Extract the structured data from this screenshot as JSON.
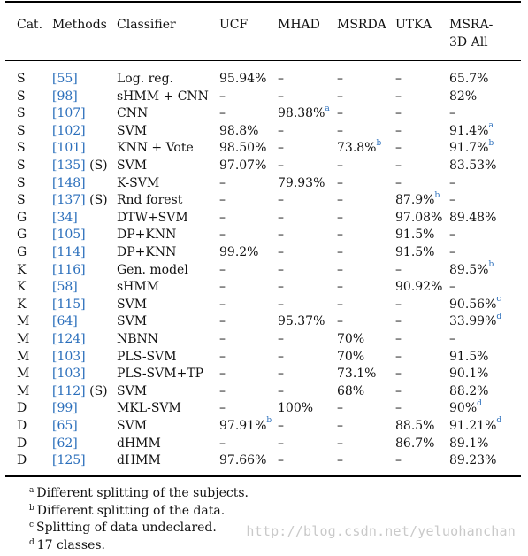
{
  "headers": {
    "cat": "Cat.",
    "methods": "Methods",
    "classifier": "Classifier",
    "ucf": "UCF",
    "mhad": "MHAD",
    "msrda": "MSRDA",
    "utka": "UTKA",
    "msra_line1": "MSRA-",
    "msra_line2": "3D All"
  },
  "rows": [
    {
      "cat": "S",
      "ref": "[55]",
      "tag": "",
      "cls": "Log. reg.",
      "ucf": "95.94%",
      "ucf_n": "",
      "mhad": "–",
      "mhad_n": "",
      "msrda": "–",
      "msrda_n": "",
      "utka": "–",
      "utka_n": "",
      "msra": "65.7%",
      "msra_n": ""
    },
    {
      "cat": "S",
      "ref": "[98]",
      "tag": "",
      "cls": "sHMM + CNN",
      "ucf": "–",
      "ucf_n": "",
      "mhad": "–",
      "mhad_n": "",
      "msrda": "–",
      "msrda_n": "",
      "utka": "–",
      "utka_n": "",
      "msra": "82%",
      "msra_n": ""
    },
    {
      "cat": "S",
      "ref": "[107]",
      "tag": "",
      "cls": "CNN",
      "ucf": "–",
      "ucf_n": "",
      "mhad": "98.38%",
      "mhad_n": "a",
      "msrda": "–",
      "msrda_n": "",
      "utka": "–",
      "utka_n": "",
      "msra": "–",
      "msra_n": ""
    },
    {
      "cat": "S",
      "ref": "[102]",
      "tag": "",
      "cls": "SVM",
      "ucf": "98.8%",
      "ucf_n": "",
      "mhad": "–",
      "mhad_n": "",
      "msrda": "–",
      "msrda_n": "",
      "utka": "–",
      "utka_n": "",
      "msra": "91.4%",
      "msra_n": "a"
    },
    {
      "cat": "S",
      "ref": "[101]",
      "tag": "",
      "cls": "KNN + Vote",
      "ucf": "98.50%",
      "ucf_n": "",
      "mhad": "–",
      "mhad_n": "",
      "msrda": "73.8%",
      "msrda_n": "b",
      "utka": "–",
      "utka_n": "",
      "msra": "91.7%",
      "msra_n": "b"
    },
    {
      "cat": "S",
      "ref": "[135]",
      "tag": " (S)",
      "cls": "SVM",
      "ucf": "97.07%",
      "ucf_n": "",
      "mhad": "–",
      "mhad_n": "",
      "msrda": "–",
      "msrda_n": "",
      "utka": "–",
      "utka_n": "",
      "msra": "83.53%",
      "msra_n": ""
    },
    {
      "cat": "S",
      "ref": "[148]",
      "tag": "",
      "cls": "K-SVM",
      "ucf": "–",
      "ucf_n": "",
      "mhad": "79.93%",
      "mhad_n": "",
      "msrda": "–",
      "msrda_n": "",
      "utka": "–",
      "utka_n": "",
      "msra": "–",
      "msra_n": ""
    },
    {
      "cat": "S",
      "ref": "[137]",
      "tag": " (S)",
      "cls": "Rnd forest",
      "ucf": "–",
      "ucf_n": "",
      "mhad": "–",
      "mhad_n": "",
      "msrda": "–",
      "msrda_n": "",
      "utka": "87.9%",
      "utka_n": "b",
      "msra": "–",
      "msra_n": ""
    },
    {
      "cat": "G",
      "ref": "[34]",
      "tag": "",
      "cls": "DTW+SVM",
      "ucf": "–",
      "ucf_n": "",
      "mhad": "–",
      "mhad_n": "",
      "msrda": "–",
      "msrda_n": "",
      "utka": "97.08%",
      "utka_n": "",
      "msra": "89.48%",
      "msra_n": ""
    },
    {
      "cat": "G",
      "ref": "[105]",
      "tag": "",
      "cls": "DP+KNN",
      "ucf": "–",
      "ucf_n": "",
      "mhad": "–",
      "mhad_n": "",
      "msrda": "–",
      "msrda_n": "",
      "utka": "91.5%",
      "utka_n": "",
      "msra": "–",
      "msra_n": ""
    },
    {
      "cat": "G",
      "ref": "[114]",
      "tag": "",
      "cls": "DP+KNN",
      "ucf": "99.2%",
      "ucf_n": "",
      "mhad": "–",
      "mhad_n": "",
      "msrda": "–",
      "msrda_n": "",
      "utka": "91.5%",
      "utka_n": "",
      "msra": "–",
      "msra_n": ""
    },
    {
      "cat": "K",
      "ref": "[116]",
      "tag": "",
      "cls": "Gen. model",
      "ucf": "–",
      "ucf_n": "",
      "mhad": "–",
      "mhad_n": "",
      "msrda": "–",
      "msrda_n": "",
      "utka": "–",
      "utka_n": "",
      "msra": "89.5%",
      "msra_n": "b"
    },
    {
      "cat": "K",
      "ref": "[58]",
      "tag": "",
      "cls": "sHMM",
      "ucf": "–",
      "ucf_n": "",
      "mhad": "–",
      "mhad_n": "",
      "msrda": "–",
      "msrda_n": "",
      "utka": "90.92%",
      "utka_n": "",
      "msra": "–",
      "msra_n": ""
    },
    {
      "cat": "K",
      "ref": "[115]",
      "tag": "",
      "cls": "SVM",
      "ucf": "–",
      "ucf_n": "",
      "mhad": "–",
      "mhad_n": "",
      "msrda": "–",
      "msrda_n": "",
      "utka": "–",
      "utka_n": "",
      "msra": "90.56%",
      "msra_n": "c"
    },
    {
      "cat": "M",
      "ref": "[64]",
      "tag": "",
      "cls": "SVM",
      "ucf": "–",
      "ucf_n": "",
      "mhad": "95.37%",
      "mhad_n": "",
      "msrda": "–",
      "msrda_n": "",
      "utka": "–",
      "utka_n": "",
      "msra": "33.99%",
      "msra_n": "d"
    },
    {
      "cat": "M",
      "ref": "[124]",
      "tag": "",
      "cls": "NBNN",
      "ucf": "–",
      "ucf_n": "",
      "mhad": "–",
      "mhad_n": "",
      "msrda": "70%",
      "msrda_n": "",
      "utka": "–",
      "utka_n": "",
      "msra": "–",
      "msra_n": ""
    },
    {
      "cat": "M",
      "ref": "[103]",
      "tag": "",
      "cls": "PLS-SVM",
      "ucf": "–",
      "ucf_n": "",
      "mhad": "–",
      "mhad_n": "",
      "msrda": "70%",
      "msrda_n": "",
      "utka": "–",
      "utka_n": "",
      "msra": "91.5%",
      "msra_n": ""
    },
    {
      "cat": "M",
      "ref": "[103]",
      "tag": "",
      "cls": "PLS-SVM+TP",
      "ucf": "–",
      "ucf_n": "",
      "mhad": "–",
      "mhad_n": "",
      "msrda": "73.1%",
      "msrda_n": "",
      "utka": "–",
      "utka_n": "",
      "msra": "90.1%",
      "msra_n": ""
    },
    {
      "cat": "M",
      "ref": "[112]",
      "tag": " (S)",
      "cls": "SVM",
      "ucf": "–",
      "ucf_n": "",
      "mhad": "–",
      "mhad_n": "",
      "msrda": "68%",
      "msrda_n": "",
      "utka": "–",
      "utka_n": "",
      "msra": "88.2%",
      "msra_n": ""
    },
    {
      "cat": "D",
      "ref": "[99]",
      "tag": "",
      "cls": "MKL-SVM",
      "ucf": "–",
      "ucf_n": "",
      "mhad": "100%",
      "mhad_n": "",
      "msrda": "–",
      "msrda_n": "",
      "utka": "–",
      "utka_n": "",
      "msra": "90%",
      "msra_n": "d"
    },
    {
      "cat": "D",
      "ref": "[65]",
      "tag": "",
      "cls": "SVM",
      "ucf": "97.91%",
      "ucf_n": "b",
      "mhad": "–",
      "mhad_n": "",
      "msrda": "–",
      "msrda_n": "",
      "utka": "88.5%",
      "utka_n": "",
      "msra": "91.21%",
      "msra_n": "d"
    },
    {
      "cat": "D",
      "ref": "[62]",
      "tag": "",
      "cls": "dHMM",
      "ucf": "–",
      "ucf_n": "",
      "mhad": "–",
      "mhad_n": "",
      "msrda": "–",
      "msrda_n": "",
      "utka": "86.7%",
      "utka_n": "",
      "msra": "89.1%",
      "msra_n": ""
    },
    {
      "cat": "D",
      "ref": "[125]",
      "tag": "",
      "cls": "dHMM",
      "ucf": "97.66%",
      "ucf_n": "",
      "mhad": "–",
      "mhad_n": "",
      "msrda": "–",
      "msrda_n": "",
      "utka": "–",
      "utka_n": "",
      "msra": "89.23%",
      "msra_n": ""
    }
  ],
  "footnotes": [
    {
      "mark": "a",
      "text": "Different splitting of the subjects."
    },
    {
      "mark": "b",
      "text": "Different splitting of the data."
    },
    {
      "mark": "c",
      "text": "Splitting of data undeclared."
    },
    {
      "mark": "d",
      "text": "17 classes."
    }
  ],
  "watermark": "http://blog.csdn.net/yeluohanchan",
  "colors": {
    "link": "#2a6ebb",
    "rule": "#000000",
    "watermark": "#c9c9c9"
  }
}
